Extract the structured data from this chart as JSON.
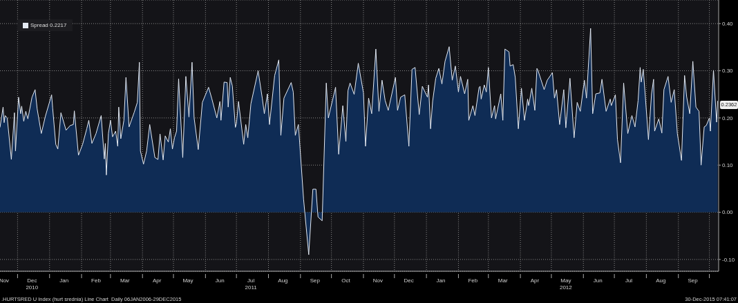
{
  "chart_data": {
    "type": "area",
    "legend": "top left",
    "grid": true,
    "marker": "none",
    "line_style": "solid",
    "xlim": [
      "2010-11-14",
      "2012-10-10"
    ],
    "ylim": [
      -0.125,
      0.45
    ],
    "yticks": [
      {
        "value": -0.1,
        "label": "-0.10"
      },
      {
        "value": 0,
        "label": "0.00"
      },
      {
        "value": 0.1,
        "label": "0.10"
      },
      {
        "value": 0.2,
        "label": "0.20"
      },
      {
        "value": 0.3,
        "label": "0.30"
      },
      {
        "value": 0.4,
        "label": "0.40"
      }
    ],
    "xticks": [
      {
        "value": "2010-11-18",
        "label": "Nov"
      },
      {
        "value": "2010-12-01",
        "label": null
      },
      {
        "value": "2010-12-15",
        "label": "Dec\n2010"
      },
      {
        "value": "2011-01-01",
        "label": null
      },
      {
        "value": "2011-01-15",
        "label": "Jan"
      },
      {
        "value": "2011-02-01",
        "label": null
      },
      {
        "value": "2011-02-15",
        "label": "Feb"
      },
      {
        "value": "2011-03-01",
        "label": null
      },
      {
        "value": "2011-03-15",
        "label": "Mar"
      },
      {
        "value": "2011-04-01",
        "label": null
      },
      {
        "value": "2011-04-15",
        "label": "Apr"
      },
      {
        "value": "2011-05-01",
        "label": null
      },
      {
        "value": "2011-05-15",
        "label": "May"
      },
      {
        "value": "2011-06-01",
        "label": null
      },
      {
        "value": "2011-06-15",
        "label": "Jun"
      },
      {
        "value": "2011-07-01",
        "label": null
      },
      {
        "value": "2011-07-15",
        "label": "Jul\n2011"
      },
      {
        "value": "2011-08-01",
        "label": null
      },
      {
        "value": "2011-08-15",
        "label": "Aug"
      },
      {
        "value": "2011-09-01",
        "label": null
      },
      {
        "value": "2011-09-15",
        "label": "Sep"
      },
      {
        "value": "2011-10-01",
        "label": null
      },
      {
        "value": "2011-10-15",
        "label": "Oct"
      },
      {
        "value": "2011-11-01",
        "label": null
      },
      {
        "value": "2011-11-15",
        "label": "Nov"
      },
      {
        "value": "2011-12-01",
        "label": null
      },
      {
        "value": "2011-12-15",
        "label": "Dec"
      },
      {
        "value": "2012-01-01",
        "label": null
      },
      {
        "value": "2012-01-15",
        "label": "Jan"
      },
      {
        "value": "2012-02-01",
        "label": null
      },
      {
        "value": "2012-02-15",
        "label": "Feb"
      },
      {
        "value": "2012-03-01",
        "label": null
      },
      {
        "value": "2012-03-15",
        "label": "Mar"
      },
      {
        "value": "2012-04-01",
        "label": null
      },
      {
        "value": "2012-04-15",
        "label": "Apr"
      },
      {
        "value": "2012-05-01",
        "label": null
      },
      {
        "value": "2012-05-15",
        "label": "May\n2012"
      },
      {
        "value": "2012-06-01",
        "label": null
      },
      {
        "value": "2012-06-15",
        "label": "Jun"
      },
      {
        "value": "2012-07-01",
        "label": null
      },
      {
        "value": "2012-07-15",
        "label": "Jul"
      },
      {
        "value": "2012-08-01",
        "label": null
      },
      {
        "value": "2012-08-15",
        "label": "Aug"
      },
      {
        "value": "2012-09-01",
        "label": null
      },
      {
        "value": "2012-09-15",
        "label": "Sep"
      },
      {
        "value": "2012-10-01",
        "label": null
      }
    ],
    "x": [
      "2010-11-14",
      "2010-11-17",
      "2010-11-18",
      "2010-11-19",
      "2010-11-21",
      "2010-11-25",
      "2010-11-28",
      "2010-11-29",
      "2010-12-02",
      "2010-12-04",
      "2010-12-05",
      "2010-12-07",
      "2010-12-09",
      "2010-12-11",
      "2010-12-15",
      "2010-12-18",
      "2010-12-20",
      "2010-12-24",
      "2010-12-28",
      "2011-01-03",
      "2011-01-04",
      "2011-01-07",
      "2011-01-09",
      "2011-01-12",
      "2011-01-17",
      "2011-01-21",
      "2011-01-24",
      "2011-01-25",
      "2011-01-29",
      "2011-02-02",
      "2011-02-06",
      "2011-02-08",
      "2011-02-11",
      "2011-02-15",
      "2011-02-20",
      "2011-02-23",
      "2011-02-24",
      "2011-02-25",
      "2011-02-27",
      "2011-03-01",
      "2011-03-03",
      "2011-03-06",
      "2011-03-08",
      "2011-03-09",
      "2011-03-11",
      "2011-03-14",
      "2011-03-16",
      "2011-03-19",
      "2011-03-24",
      "2011-03-27",
      "2011-03-29",
      "2011-03-30",
      "2011-04-02",
      "2011-04-05",
      "2011-04-08",
      "2011-04-13",
      "2011-04-16",
      "2011-04-18",
      "2011-04-21",
      "2011-04-23",
      "2011-04-26",
      "2011-04-28",
      "2011-04-30",
      "2011-05-02",
      "2011-05-04",
      "2011-05-06",
      "2011-05-10",
      "2011-05-13",
      "2011-05-16",
      "2011-05-19",
      "2011-05-21",
      "2011-05-25",
      "2011-05-29",
      "2011-06-04",
      "2011-06-07",
      "2011-06-12",
      "2011-06-15",
      "2011-06-16",
      "2011-06-19",
      "2011-06-22",
      "2011-06-23",
      "2011-06-25",
      "2011-06-27",
      "2011-06-30",
      "2011-07-01",
      "2011-07-03",
      "2011-07-08",
      "2011-07-10",
      "2011-07-12",
      "2011-07-15",
      "2011-07-22",
      "2011-07-26",
      "2011-07-28",
      "2011-07-31",
      "2011-08-02",
      "2011-08-07",
      "2011-08-11",
      "2011-08-13",
      "2011-08-16",
      "2011-08-23",
      "2011-08-25",
      "2011-08-27",
      "2011-08-30",
      "2011-09-04",
      "2011-09-09",
      "2011-09-13",
      "2011-09-16",
      "2011-09-18",
      "2011-09-22",
      "2011-09-26",
      "2011-09-28",
      "2011-10-05",
      "2011-10-08",
      "2011-10-12",
      "2011-10-15",
      "2011-10-17",
      "2011-10-19",
      "2011-10-23",
      "2011-10-27",
      "2011-11-01",
      "2011-11-03",
      "2011-11-06",
      "2011-11-09",
      "2011-11-13",
      "2011-11-16",
      "2011-11-19",
      "2011-11-22",
      "2011-11-25",
      "2011-12-02",
      "2011-12-04",
      "2011-12-07",
      "2011-12-11",
      "2011-12-15",
      "2011-12-18",
      "2011-12-21",
      "2011-12-25",
      "2011-12-28",
      "2012-01-02",
      "2012-01-03",
      "2012-01-05",
      "2012-01-07",
      "2012-01-10",
      "2012-01-13",
      "2012-01-16",
      "2012-01-19",
      "2012-01-23",
      "2012-01-26",
      "2012-01-29",
      "2012-02-01",
      "2012-02-03",
      "2012-02-07",
      "2012-02-10",
      "2012-02-11",
      "2012-02-15",
      "2012-02-17",
      "2012-02-21",
      "2012-02-22",
      "2012-02-23",
      "2012-02-26",
      "2012-02-28",
      "2012-03-01",
      "2012-03-04",
      "2012-03-07",
      "2012-03-08",
      "2012-03-13",
      "2012-03-15",
      "2012-03-17",
      "2012-03-21",
      "2012-03-22",
      "2012-03-25",
      "2012-03-27",
      "2012-03-30",
      "2012-04-02",
      "2012-04-05",
      "2012-04-08",
      "2012-04-09",
      "2012-04-12",
      "2012-04-15",
      "2012-04-17",
      "2012-04-18",
      "2012-04-24",
      "2012-04-27",
      "2012-05-02",
      "2012-05-04",
      "2012-05-06",
      "2012-05-09",
      "2012-05-13",
      "2012-05-15",
      "2012-05-19",
      "2012-05-23",
      "2012-05-26",
      "2012-05-29",
      "2012-06-02",
      "2012-06-04",
      "2012-06-08",
      "2012-06-10",
      "2012-06-13",
      "2012-06-17",
      "2012-06-19",
      "2012-06-23",
      "2012-06-27",
      "2012-06-28",
      "2012-07-02",
      "2012-07-04",
      "2012-07-07",
      "2012-07-10",
      "2012-07-14",
      "2012-07-18",
      "2012-07-21",
      "2012-07-24",
      "2012-07-26",
      "2012-07-27",
      "2012-07-29",
      "2012-07-31",
      "2012-08-03",
      "2012-08-06",
      "2012-08-08",
      "2012-08-09",
      "2012-08-13",
      "2012-08-16",
      "2012-08-18",
      "2012-08-22",
      "2012-08-25",
      "2012-08-28",
      "2012-08-31",
      "2012-09-04",
      "2012-09-07",
      "2012-09-09",
      "2012-09-12",
      "2012-09-15",
      "2012-09-18",
      "2012-09-21",
      "2012-09-23",
      "2012-09-26",
      "2012-09-28",
      "2012-10-01",
      "2012-10-02",
      "2012-10-05",
      "2012-10-08",
      "2012-10-09"
    ],
    "series": [
      {
        "name": "Spread 0.2217",
        "color": "#e4eaf3",
        "values": [
          0.18,
          0.223,
          0.19,
          0.205,
          0.2,
          0.112,
          0.211,
          0.13,
          0.244,
          0.209,
          0.225,
          0.193,
          0.214,
          0.198,
          0.244,
          0.26,
          0.219,
          0.167,
          0.204,
          0.249,
          0.221,
          0.144,
          0.134,
          0.211,
          0.174,
          0.184,
          0.186,
          0.215,
          0.121,
          0.144,
          0.177,
          0.195,
          0.146,
          0.167,
          0.205,
          0.113,
          0.146,
          0.079,
          0.167,
          0.195,
          0.16,
          0.172,
          0.14,
          0.223,
          0.156,
          0.195,
          0.286,
          0.181,
          0.212,
          0.233,
          0.318,
          0.13,
          0.102,
          0.13,
          0.186,
          0.116,
          0.112,
          0.166,
          0.111,
          0.162,
          0.149,
          0.177,
          0.134,
          0.158,
          0.172,
          0.283,
          0.116,
          0.288,
          0.202,
          0.318,
          0.2,
          0.133,
          0.233,
          0.265,
          0.242,
          0.2,
          0.235,
          0.195,
          0.276,
          0.275,
          0.223,
          0.286,
          0.268,
          0.18,
          0.188,
          0.235,
          0.144,
          0.186,
          0.158,
          0.23,
          0.3,
          0.242,
          0.209,
          0.251,
          0.186,
          0.29,
          0.323,
          0.163,
          0.242,
          0.275,
          0.255,
          0.163,
          0.186,
          0.028,
          -0.09,
          0.049,
          0.049,
          -0.01,
          -0.018,
          0.274,
          0.2,
          0.265,
          0.123,
          0.226,
          0.15,
          0.258,
          0.274,
          0.25,
          0.316,
          0.253,
          0.14,
          0.242,
          0.209,
          0.346,
          0.214,
          0.28,
          0.237,
          0.216,
          0.286,
          0.216,
          0.244,
          0.249,
          0.14,
          0.303,
          0.307,
          0.207,
          0.267,
          0.244,
          0.27,
          0.177,
          0.235,
          0.284,
          0.305,
          0.272,
          0.32,
          0.351,
          0.28,
          0.31,
          0.255,
          0.288,
          0.251,
          0.282,
          0.195,
          0.226,
          0.205,
          0.265,
          0.267,
          0.24,
          0.27,
          0.255,
          0.307,
          0.2,
          0.226,
          0.198,
          0.251,
          0.195,
          0.346,
          0.34,
          0.31,
          0.313,
          0.286,
          0.177,
          0.263,
          0.195,
          0.24,
          0.226,
          0.263,
          0.216,
          0.305,
          0.301,
          0.26,
          0.28,
          0.296,
          0.242,
          0.26,
          0.186,
          0.26,
          0.179,
          0.284,
          0.158,
          0.233,
          0.214,
          0.28,
          0.242,
          0.39,
          0.209,
          0.251,
          0.253,
          0.282,
          0.214,
          0.24,
          0.226,
          0.249,
          0.154,
          0.105,
          0.274,
          0.167,
          0.205,
          0.181,
          0.237,
          0.307,
          0.276,
          0.303,
          0.245,
          0.154,
          0.251,
          0.282,
          0.172,
          0.198,
          0.168,
          0.26,
          0.288,
          0.233,
          0.26,
          0.167,
          0.11,
          0.29,
          0.245,
          0.209,
          0.32,
          0.223,
          0.214,
          0.1,
          0.181,
          0.184,
          0.2,
          0.172,
          0.301,
          0.191,
          0.236
        ]
      }
    ],
    "annotations": [
      {
        "text": "0.2362",
        "x": "2012-10-09",
        "y": 0.2362
      },
      ".HURTSRED U Index (hurt srednia) Line Chart  Daily 06JAN2006-29DEC2015",
      "30-Dec-2015 07:41:07"
    ]
  }
}
